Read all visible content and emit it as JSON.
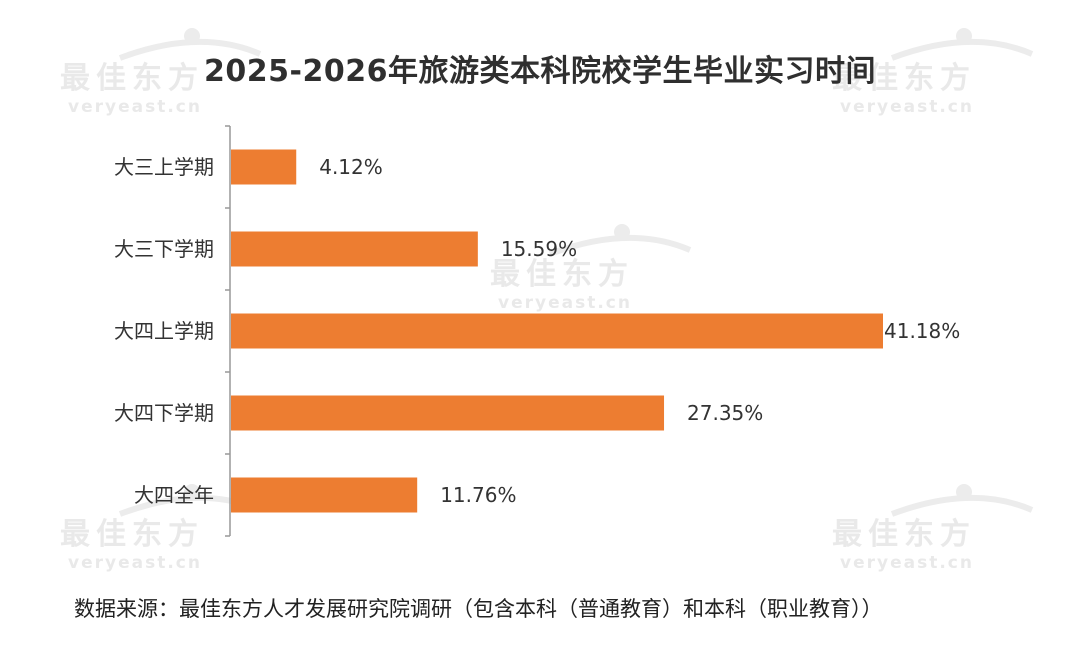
{
  "chart_data": {
    "type": "bar",
    "orientation": "horizontal",
    "title": "2025-2026年旅游类本科院校学生毕业实习时间",
    "categories": [
      "大三上学期",
      "大三下学期",
      "大四上学期",
      "大四下学期",
      "大四全年"
    ],
    "values": [
      4.12,
      15.59,
      41.18,
      27.35,
      11.76
    ],
    "value_labels": [
      "4.12%",
      "15.59%",
      "41.18%",
      "27.35%",
      "11.76%"
    ],
    "unit": "%",
    "xlim": [
      0,
      43
    ],
    "bar_color": "#ED7D31",
    "grid": false,
    "legend": "none"
  },
  "source": "数据来源：最佳东方人才发展研究院调研（包含本科（普通教育）和本科（职业教育））",
  "watermark": {
    "brand": "最佳东方",
    "site": "veryeast.cn",
    "color": "#e9e9e9"
  }
}
